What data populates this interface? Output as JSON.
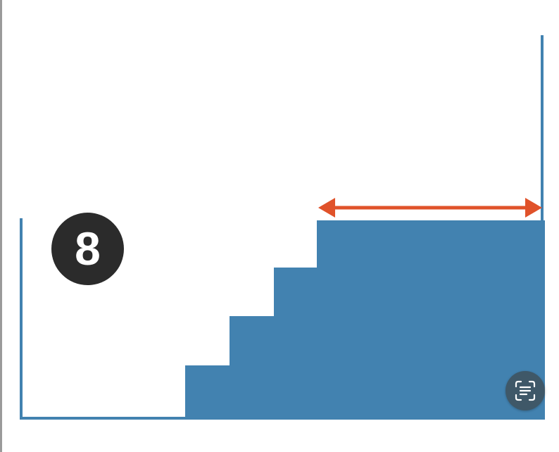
{
  "diagram": {
    "step_number": "8",
    "colors": {
      "fill": "#4282b0",
      "outline": "#4282b0",
      "arrow": "#e0522a",
      "badge": "#2b2b2b",
      "badge_text": "#ffffff"
    }
  },
  "overlay": {
    "scan_button_icon": "text-scan-icon"
  }
}
